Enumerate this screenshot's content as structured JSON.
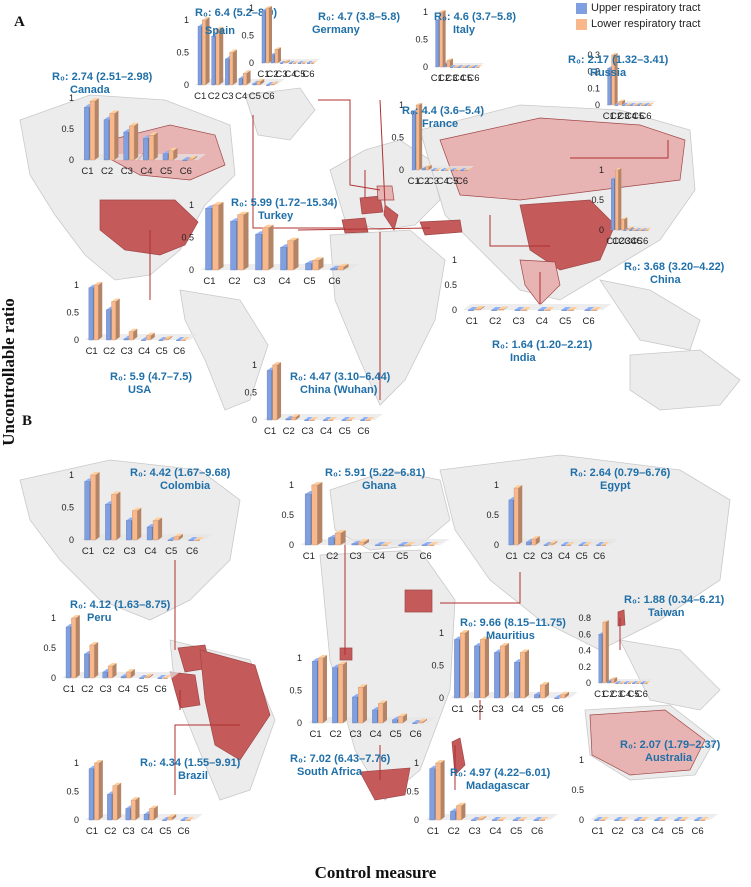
{
  "figure": {
    "y_axis_label": "Uncontrollable ratio",
    "x_axis_label": "Control measure",
    "panel_a_label": "A",
    "panel_b_label": "B"
  },
  "legend": {
    "series": [
      {
        "name": "Upper respiratory tract",
        "color": "#7f9fe0"
      },
      {
        "name": "Lower respiratory tract",
        "color": "#f8b88c"
      }
    ]
  },
  "colors": {
    "title": "#1f6fa8",
    "country_dark": "#c55a5a",
    "country_light": "#e8b3b3",
    "land": "#ececec"
  },
  "chart_data": [
    {
      "type": "bar",
      "name": "Spain",
      "title": "R0: 6.4 (5.2–8.0)",
      "categories": [
        "C1",
        "C2",
        "C3",
        "C4",
        "C5",
        "C6"
      ],
      "series": [
        {
          "name": "Upper respiratory tract",
          "values": [
            0.9,
            0.75,
            0.4,
            0.1,
            0.02,
            0.0
          ]
        },
        {
          "name": "Lower respiratory tract",
          "values": [
            1.0,
            0.85,
            0.5,
            0.18,
            0.05,
            0.01
          ]
        }
      ],
      "ylim": [
        0,
        1
      ],
      "yticks": [
        0,
        0.5,
        1
      ]
    },
    {
      "type": "bar",
      "name": "Germany",
      "title": "R0: 4.7 (3.8–5.8)",
      "categories": [
        "C1",
        "C2",
        "C3",
        "C4",
        "C5",
        "C6"
      ],
      "series": [
        {
          "name": "Upper respiratory tract",
          "values": [
            0.95,
            0.15,
            0.0,
            0.0,
            0.0,
            0.0
          ]
        },
        {
          "name": "Lower respiratory tract",
          "values": [
            1.0,
            0.25,
            0.02,
            0.0,
            0.0,
            0.0
          ]
        }
      ],
      "ylim": [
        0,
        1
      ],
      "yticks": [
        0,
        0.5,
        1
      ]
    },
    {
      "type": "bar",
      "name": "Italy",
      "title": "R0: 4.6 (3.7–5.8)",
      "categories": [
        "C1",
        "C2",
        "C3",
        "C4",
        "C5",
        "C6"
      ],
      "series": [
        {
          "name": "Upper respiratory tract",
          "values": [
            0.85,
            0.05,
            0.0,
            0.0,
            0.0,
            0.0
          ]
        },
        {
          "name": "Lower respiratory tract",
          "values": [
            1.0,
            0.12,
            0.0,
            0.0,
            0.0,
            0.0
          ]
        }
      ],
      "ylim": [
        0,
        1
      ],
      "yticks": [
        0,
        0.5,
        1
      ]
    },
    {
      "type": "bar",
      "name": "Russia",
      "title": "R0: 2.17 (1.32–3.41)",
      "categories": [
        "C1",
        "C2",
        "C3",
        "C4",
        "C5",
        "C6"
      ],
      "series": [
        {
          "name": "Upper respiratory tract",
          "values": [
            0.22,
            0.0,
            0.0,
            0.0,
            0.0,
            0.0
          ]
        },
        {
          "name": "Lower respiratory tract",
          "values": [
            0.3,
            0.02,
            0.0,
            0.0,
            0.0,
            0.0
          ]
        }
      ],
      "ylim": [
        0,
        0.3
      ],
      "yticks": [
        0,
        0.1,
        0.2,
        0.3
      ]
    },
    {
      "type": "bar",
      "name": "Canada",
      "title": "R0: 2.74 (2.51–2.98)",
      "categories": [
        "C1",
        "C2",
        "C3",
        "C4",
        "C5",
        "C6"
      ],
      "series": [
        {
          "name": "Upper respiratory tract",
          "values": [
            0.85,
            0.65,
            0.45,
            0.35,
            0.1,
            0.0
          ]
        },
        {
          "name": "Lower respiratory tract",
          "values": [
            0.95,
            0.75,
            0.55,
            0.4,
            0.15,
            0.02
          ]
        }
      ],
      "ylim": [
        0,
        1
      ],
      "yticks": [
        0,
        0.5,
        1
      ]
    },
    {
      "type": "bar",
      "name": "France",
      "title": "R0: 4.4 (3.6–5.4)",
      "categories": [
        "C1",
        "C2",
        "C3",
        "C4",
        "C5",
        "C6"
      ],
      "series": [
        {
          "name": "Upper respiratory tract",
          "values": [
            0.9,
            0.02,
            0.0,
            0.0,
            0.0,
            0.0
          ]
        },
        {
          "name": "Lower respiratory tract",
          "values": [
            1.0,
            0.05,
            0.0,
            0.0,
            0.0,
            0.0
          ]
        }
      ],
      "ylim": [
        0,
        1
      ],
      "yticks": [
        0,
        0.5,
        1
      ]
    },
    {
      "type": "bar",
      "name": "Turkey",
      "title": "R0: 5.99 (1.72–15.34)",
      "categories": [
        "C1",
        "C2",
        "C3",
        "C4",
        "C5",
        "C6"
      ],
      "series": [
        {
          "name": "Upper respiratory tract",
          "values": [
            0.95,
            0.75,
            0.55,
            0.35,
            0.1,
            0.02
          ]
        },
        {
          "name": "Lower respiratory tract",
          "values": [
            1.0,
            0.85,
            0.65,
            0.45,
            0.15,
            0.05
          ]
        }
      ],
      "ylim": [
        0,
        1
      ],
      "yticks": [
        0,
        0.5,
        1
      ]
    },
    {
      "type": "bar",
      "name": "China",
      "title": "R0: 3.68 (3.20–4.22)",
      "categories": [
        "C1",
        "C2",
        "C3",
        "C4",
        "C5",
        "C6"
      ],
      "series": [
        {
          "name": "Upper respiratory tract",
          "values": [
            0.85,
            0.12,
            0.0,
            0.0,
            0.0,
            0.0
          ]
        },
        {
          "name": "Lower respiratory tract",
          "values": [
            1.0,
            0.18,
            0.02,
            0.0,
            0.0,
            0.0
          ]
        }
      ],
      "ylim": [
        0,
        1
      ],
      "yticks": [
        0,
        0.5,
        1
      ]
    },
    {
      "type": "bar",
      "name": "USA",
      "title": "R0: 5.9 (4.7–7.5)",
      "categories": [
        "C1",
        "C2",
        "C3",
        "C4",
        "C5",
        "C6"
      ],
      "series": [
        {
          "name": "Upper respiratory tract",
          "values": [
            0.95,
            0.55,
            0.02,
            0.0,
            0.0,
            0.0
          ]
        },
        {
          "name": "Lower respiratory tract",
          "values": [
            1.0,
            0.7,
            0.15,
            0.08,
            0.02,
            0.0
          ]
        }
      ],
      "ylim": [
        0,
        1
      ],
      "yticks": [
        0,
        0.5,
        1
      ]
    },
    {
      "type": "bar",
      "name": "India",
      "title": "R0: 1.64 (1.20–2.21)",
      "categories": [
        "C1",
        "C2",
        "C3",
        "C4",
        "C5",
        "C6"
      ],
      "series": [
        {
          "name": "Upper respiratory tract",
          "values": [
            0.0,
            0.0,
            0.0,
            0.0,
            0.0,
            0.0
          ]
        },
        {
          "name": "Lower respiratory tract",
          "values": [
            0.02,
            0.01,
            0.0,
            0.0,
            0.0,
            0.0
          ]
        }
      ],
      "ylim": [
        0,
        1
      ],
      "yticks": [
        0,
        0.5,
        1
      ]
    },
    {
      "type": "bar",
      "name": "China (Wuhan)",
      "title": "R0: 4.47 (3.10–6.44)",
      "categories": [
        "C1",
        "C2",
        "C3",
        "C4",
        "C5",
        "C6"
      ],
      "series": [
        {
          "name": "Upper respiratory tract",
          "values": [
            0.9,
            0.02,
            0.0,
            0.0,
            0.0,
            0.0
          ]
        },
        {
          "name": "Lower respiratory tract",
          "values": [
            1.0,
            0.05,
            0.0,
            0.0,
            0.0,
            0.0
          ]
        }
      ],
      "ylim": [
        0,
        1
      ],
      "yticks": [
        0,
        0.5,
        1
      ]
    },
    {
      "type": "bar",
      "name": "Colombia",
      "title": "R0: 4.42 (1.67–9.68)",
      "categories": [
        "C1",
        "C2",
        "C3",
        "C4",
        "C5",
        "C6"
      ],
      "series": [
        {
          "name": "Upper respiratory tract",
          "values": [
            0.9,
            0.55,
            0.3,
            0.2,
            0.0,
            0.0
          ]
        },
        {
          "name": "Lower respiratory tract",
          "values": [
            1.0,
            0.7,
            0.45,
            0.3,
            0.05,
            0.0
          ]
        }
      ],
      "ylim": [
        0,
        1
      ],
      "yticks": [
        0,
        0.5,
        1
      ]
    },
    {
      "type": "bar",
      "name": "Ghana",
      "title": "R0: 5.91 (5.22–6.81)",
      "categories": [
        "C1",
        "C2",
        "C3",
        "C4",
        "C5",
        "C6"
      ],
      "series": [
        {
          "name": "Upper respiratory tract",
          "values": [
            0.85,
            0.12,
            0.02,
            0.0,
            0.0,
            0.0
          ]
        },
        {
          "name": "Lower respiratory tract",
          "values": [
            1.0,
            0.2,
            0.05,
            0.0,
            0.0,
            0.0
          ]
        }
      ],
      "ylim": [
        0,
        1
      ],
      "yticks": [
        0,
        0.5,
        1
      ]
    },
    {
      "type": "bar",
      "name": "Egypt",
      "title": "R0: 2.64 (0.79–6.76)",
      "categories": [
        "C1",
        "C2",
        "C3",
        "C4",
        "C5",
        "C6"
      ],
      "series": [
        {
          "name": "Upper respiratory tract",
          "values": [
            0.75,
            0.05,
            0.0,
            0.0,
            0.0,
            0.0
          ]
        },
        {
          "name": "Lower respiratory tract",
          "values": [
            0.95,
            0.1,
            0.02,
            0.0,
            0.0,
            0.0
          ]
        }
      ],
      "ylim": [
        0,
        1
      ],
      "yticks": [
        0,
        0.5,
        1
      ]
    },
    {
      "type": "bar",
      "name": "Peru",
      "title": "R0: 4.12 (1.63–8.75)",
      "categories": [
        "C1",
        "C2",
        "C3",
        "C4",
        "C5",
        "C6"
      ],
      "series": [
        {
          "name": "Upper respiratory tract",
          "values": [
            0.85,
            0.4,
            0.1,
            0.02,
            0.0,
            0.0
          ]
        },
        {
          "name": "Lower respiratory tract",
          "values": [
            1.0,
            0.55,
            0.2,
            0.1,
            0.02,
            0.0
          ]
        }
      ],
      "ylim": [
        0,
        1
      ],
      "yticks": [
        0,
        0.5,
        1
      ]
    },
    {
      "type": "bar",
      "name": "Taiwan",
      "title": "R0: 1.88 (0.34–6.21)",
      "categories": [
        "C1",
        "C2",
        "C3",
        "C4",
        "C5",
        "C6"
      ],
      "series": [
        {
          "name": "Upper respiratory tract",
          "values": [
            0.6,
            0.02,
            0.0,
            0.0,
            0.0,
            0.0
          ]
        },
        {
          "name": "Lower respiratory tract",
          "values": [
            0.75,
            0.05,
            0.0,
            0.0,
            0.0,
            0.0
          ]
        }
      ],
      "ylim": [
        0,
        0.8
      ],
      "yticks": [
        0,
        0.2,
        0.4,
        0.6,
        0.8
      ]
    },
    {
      "type": "bar",
      "name": "Mauritius",
      "title": "R0: 9.66 (8.15–11.75)",
      "categories": [
        "C1",
        "C2",
        "C3",
        "C4",
        "C5",
        "C6"
      ],
      "series": [
        {
          "name": "Upper respiratory tract",
          "values": [
            0.9,
            0.8,
            0.7,
            0.55,
            0.05,
            0.0
          ]
        },
        {
          "name": "Lower respiratory tract",
          "values": [
            1.0,
            0.9,
            0.8,
            0.7,
            0.2,
            0.05
          ]
        }
      ],
      "ylim": [
        0,
        1
      ],
      "yticks": [
        0,
        0.5,
        1
      ]
    },
    {
      "type": "bar",
      "name": "South Africa",
      "title": "R0: 7.02 (6.43–7.76)",
      "categories": [
        "C1",
        "C2",
        "C3",
        "C4",
        "C5",
        "C6"
      ],
      "series": [
        {
          "name": "Upper respiratory tract",
          "values": [
            0.95,
            0.85,
            0.4,
            0.2,
            0.05,
            0.0
          ]
        },
        {
          "name": "Lower respiratory tract",
          "values": [
            1.0,
            0.9,
            0.55,
            0.3,
            0.1,
            0.02
          ]
        }
      ],
      "ylim": [
        0,
        1
      ],
      "yticks": [
        0,
        0.5,
        1
      ]
    },
    {
      "type": "bar",
      "name": "Brazil",
      "title": "R0: 4.34 (1.55–9.91)",
      "categories": [
        "C1",
        "C2",
        "C3",
        "C4",
        "C5",
        "C6"
      ],
      "series": [
        {
          "name": "Upper respiratory tract",
          "values": [
            0.9,
            0.45,
            0.2,
            0.1,
            0.0,
            0.0
          ]
        },
        {
          "name": "Lower respiratory tract",
          "values": [
            1.0,
            0.6,
            0.35,
            0.2,
            0.05,
            0.0
          ]
        }
      ],
      "ylim": [
        0,
        1
      ],
      "yticks": [
        0,
        0.5,
        1
      ]
    },
    {
      "type": "bar",
      "name": "Madagascar",
      "title": "R0: 4.97 (4.22–6.01)",
      "categories": [
        "C1",
        "C2",
        "C3",
        "C4",
        "C5",
        "C6"
      ],
      "series": [
        {
          "name": "Upper respiratory tract",
          "values": [
            0.9,
            0.15,
            0.0,
            0.0,
            0.0,
            0.0
          ]
        },
        {
          "name": "Lower respiratory tract",
          "values": [
            1.0,
            0.25,
            0.02,
            0.0,
            0.0,
            0.0
          ]
        }
      ],
      "ylim": [
        0,
        1
      ],
      "yticks": [
        0,
        0.5,
        1
      ]
    },
    {
      "type": "bar",
      "name": "Australia",
      "title": "R0: 2.07 (1.79–2.37)",
      "categories": [
        "C1",
        "C2",
        "C3",
        "C4",
        "C5",
        "C6"
      ],
      "series": [
        {
          "name": "Upper respiratory tract",
          "values": [
            0.0,
            0.0,
            0.0,
            0.0,
            0.0,
            0.0
          ]
        },
        {
          "name": "Lower respiratory tract",
          "values": [
            0.0,
            0.0,
            0.0,
            0.0,
            0.0,
            0.0
          ]
        }
      ],
      "ylim": [
        0,
        1
      ],
      "yticks": [
        0,
        0.5,
        1
      ]
    }
  ]
}
